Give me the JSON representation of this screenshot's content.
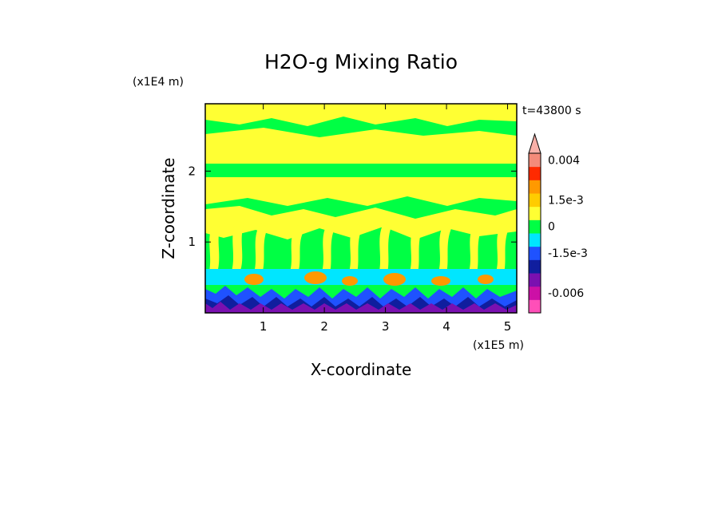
{
  "chart_data": {
    "type": "heatmap",
    "title": "H2O-g Mixing Ratio",
    "xlabel": "X-coordinate",
    "ylabel": "Z-coordinate",
    "x_scale_label": "(x1E5 m)",
    "y_scale_label": "(x1E4 m)",
    "time_label": "t=43800 s",
    "xlim": [
      0.05,
      5.15
    ],
    "ylim": [
      0,
      2.95
    ],
    "x_ticks": [
      {
        "value": 1,
        "label": "1"
      },
      {
        "value": 2,
        "label": "2"
      },
      {
        "value": 3,
        "label": "3"
      },
      {
        "value": 4,
        "label": "4"
      },
      {
        "value": 5,
        "label": "5"
      }
    ],
    "y_ticks": [
      {
        "value": 1,
        "label": "1"
      },
      {
        "value": 2,
        "label": "2"
      }
    ],
    "colorbar": {
      "levels": [
        {
          "color": "#ff4fb8"
        },
        {
          "color": "#cc10a6"
        },
        {
          "color": "#7a10b0"
        },
        {
          "color": "#101e9e"
        },
        {
          "color": "#1f52ff"
        },
        {
          "color": "#00e6ff"
        },
        {
          "color": "#00ff44"
        },
        {
          "color": "#ffff33"
        },
        {
          "color": "#ffcc00"
        },
        {
          "color": "#ff9900"
        },
        {
          "color": "#ff2a00"
        },
        {
          "color": "#f48b7a"
        },
        {
          "color": "#f8b0a8"
        }
      ],
      "labels": [
        "0.004",
        "1.5e-3",
        "0",
        "-1.5e-3",
        "-0.006"
      ]
    },
    "field_bands": [
      {
        "z_from": 0.0,
        "z_to": 0.12,
        "dominant": "#7a10b0"
      },
      {
        "z_from": 0.12,
        "z_to": 0.35,
        "dominant": "#1f52ff"
      },
      {
        "z_from": 0.35,
        "z_to": 0.65,
        "dominant": "#00e6ff"
      },
      {
        "z_from": 0.65,
        "z_to": 1.5,
        "dominant": "#00ff44"
      },
      {
        "z_from": 1.5,
        "z_to": 2.95,
        "dominant": "#ffff33"
      }
    ]
  }
}
